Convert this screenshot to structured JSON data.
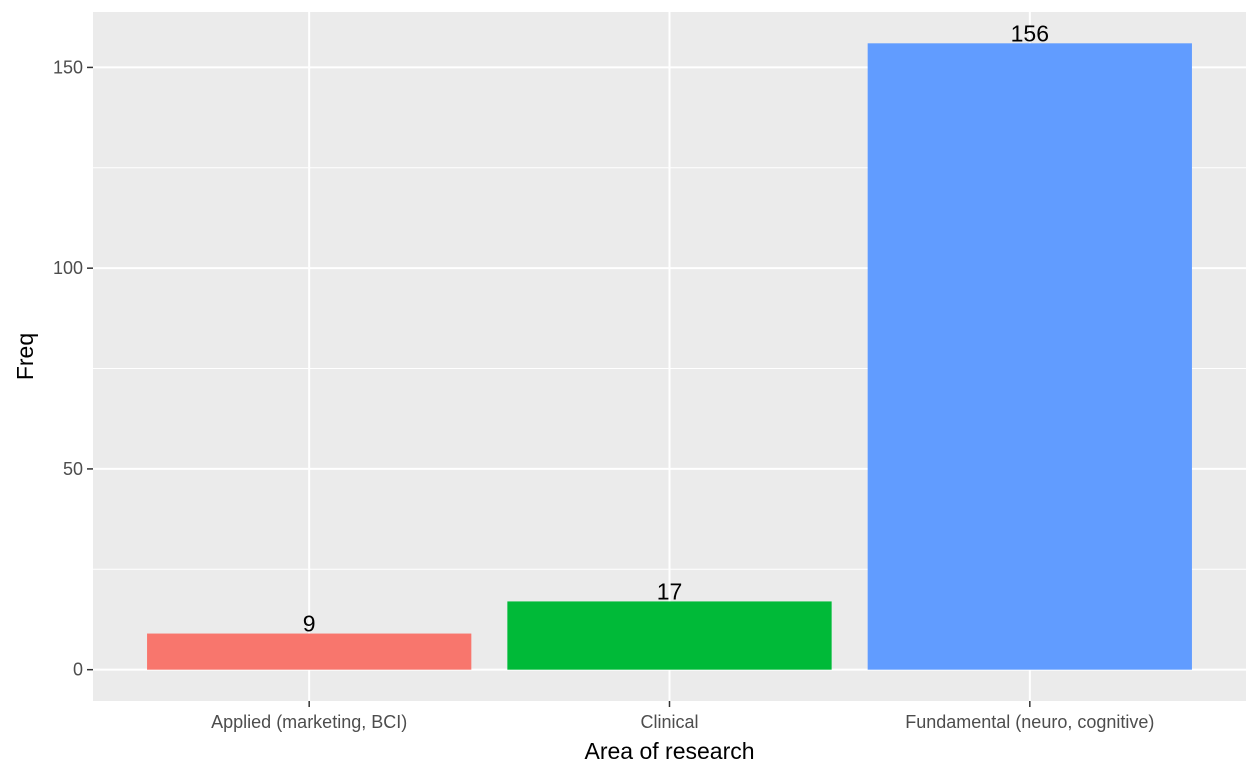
{
  "chart_data": {
    "type": "bar",
    "categories": [
      "Applied (marketing, BCI)",
      "Clinical",
      "Fundamental (neuro, cognitive)"
    ],
    "values": [
      9,
      17,
      156
    ],
    "data_labels": [
      "9",
      "17",
      "156"
    ],
    "colors": [
      "#F8766D",
      "#00BA38",
      "#619CFF"
    ],
    "xlabel": "Area of research",
    "ylabel": "Freq",
    "ylim": [
      -7.8,
      163.8
    ],
    "yticks": [
      0,
      50,
      100,
      150
    ],
    "ytick_labels": [
      "0",
      "50",
      "100",
      "150"
    ],
    "grid": true,
    "legend": "none",
    "panel_background": "#EBEBEB",
    "grid_color": "#FFFFFF"
  }
}
